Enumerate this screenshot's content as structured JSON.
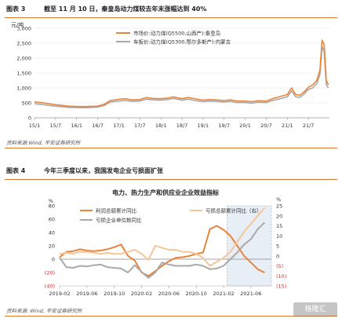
{
  "figure3": {
    "num": "图表 3",
    "title": "截至 11 月 10 日，秦皇岛动力煤较去年末涨幅达到 40%",
    "source": "资料来源:Wind, 平安证券研究所"
  },
  "figure4": {
    "num": "图表 4",
    "title": "今年三季度以来，我国发电企业亏损面扩张",
    "source": "资料来源: Wind, 平安证券研究所"
  },
  "watermark": "格隆汇",
  "chart_data": [
    {
      "type": "line",
      "title": "",
      "ylabel": "元/吨",
      "ylim": [
        0,
        3000
      ],
      "yticks": [
        0,
        500,
        1000,
        1500,
        2000,
        2500,
        3000
      ],
      "yticklabels": [
        "0",
        "500",
        "1,000",
        "1,500",
        "2,000",
        "2,500",
        "3,000"
      ],
      "xticklabels": [
        "15/1",
        "15/7",
        "16/1",
        "16/7",
        "17/1",
        "17/7",
        "18/1",
        "18/7",
        "19/1",
        "19/7",
        "20/1",
        "20/7",
        "21/1",
        "21/7"
      ],
      "xrange": [
        0,
        14
      ],
      "grid": "horizontal",
      "legend": "top-right",
      "colors": [
        "#e8843c",
        "#a9a9a9"
      ],
      "series": [
        {
          "name": "市场价:动力煤(Q5500,山西产):秦皇岛",
          "x": [
            0,
            0.3,
            0.6,
            1,
            1.3,
            1.6,
            2,
            2.3,
            2.6,
            3,
            3.3,
            3.6,
            4,
            4.3,
            4.6,
            5,
            5.3,
            5.6,
            6,
            6.3,
            6.6,
            7,
            7.3,
            7.6,
            8,
            8.3,
            8.6,
            9,
            9.3,
            9.6,
            10,
            10.3,
            10.6,
            11,
            11.3,
            11.6,
            12,
            12.2,
            12.4,
            12.6,
            12.8,
            13,
            13.2,
            13.4,
            13.55,
            13.65,
            13.75,
            13.85,
            13.95
          ],
          "values": [
            530,
            510,
            480,
            440,
            415,
            390,
            380,
            375,
            380,
            390,
            450,
            580,
            620,
            640,
            600,
            610,
            680,
            650,
            640,
            660,
            700,
            640,
            680,
            640,
            590,
            610,
            600,
            580,
            600,
            560,
            560,
            540,
            570,
            560,
            640,
            700,
            780,
            1000,
            780,
            760,
            870,
            1020,
            1100,
            1250,
            1600,
            2600,
            2450,
            1250,
            1100
          ]
        },
        {
          "name": "车板价:动力煤(Q5300,鄂尔多斯产):内蒙古",
          "x": [
            0,
            0.3,
            0.6,
            1,
            1.3,
            1.6,
            2,
            2.3,
            2.6,
            3,
            3.3,
            3.6,
            4,
            4.3,
            4.6,
            5,
            5.3,
            5.6,
            6,
            6.3,
            6.6,
            7,
            7.3,
            7.6,
            8,
            8.3,
            8.6,
            9,
            9.3,
            9.6,
            10,
            10.3,
            10.6,
            11,
            11.3,
            11.6,
            12,
            12.2,
            12.4,
            12.6,
            12.8,
            13,
            13.2,
            13.4,
            13.55,
            13.65,
            13.75,
            13.85,
            13.95
          ],
          "values": [
            470,
            450,
            420,
            390,
            370,
            350,
            340,
            340,
            345,
            355,
            410,
            530,
            560,
            580,
            550,
            560,
            620,
            600,
            590,
            610,
            650,
            590,
            620,
            580,
            540,
            560,
            550,
            530,
            550,
            510,
            510,
            490,
            520,
            510,
            580,
            630,
            700,
            900,
            700,
            690,
            800,
            950,
            1000,
            1150,
            1450,
            2400,
            2200,
            1100,
            1000
          ]
        }
      ]
    },
    {
      "type": "line",
      "title": "电力、热力生产和供应业企业效益指标",
      "ylabel": "%",
      "y2label": "%",
      "ylim": [
        -40,
        80
      ],
      "yticklabels": [
        "(40)",
        "(20)",
        "0",
        "20",
        "40",
        "60",
        "80"
      ],
      "y2lim": [
        -15,
        25
      ],
      "y2ticklabels": [
        "(15)",
        "(10)",
        "(5)",
        "0",
        "5",
        "10",
        "15",
        "20",
        "25"
      ],
      "xticklabels": [
        "2019-02",
        "2019-06",
        "2019-10",
        "2020-02",
        "2020-06",
        "2020-10",
        "2021-02",
        "2021-06"
      ],
      "xrange": [
        0,
        31
      ],
      "shaded_region": [
        24.5,
        31
      ],
      "legend": "top",
      "colors": [
        "#e8843c",
        "#f5c59a",
        "#a9a9a9"
      ],
      "series": [
        {
          "name": "利润总额累计同比",
          "axis": "left",
          "x": [
            0,
            1,
            2,
            3,
            4,
            5,
            6,
            7,
            8,
            9,
            10,
            11,
            12,
            13,
            14,
            15,
            16,
            17,
            18,
            19,
            20,
            21,
            22,
            23,
            24,
            25,
            26,
            27,
            28,
            29,
            30
          ],
          "values": [
            3,
            11,
            12,
            15,
            13,
            12,
            13,
            15,
            18,
            22,
            5,
            -2,
            -20,
            -25,
            -18,
            -10,
            -3,
            2,
            3,
            5,
            8,
            10,
            45,
            50,
            44,
            35,
            20,
            5,
            -5,
            -15,
            -20
          ]
        },
        {
          "name": "亏损总额累计同比（右）",
          "axis": "right",
          "x": [
            0,
            1,
            2,
            3,
            4,
            5,
            6,
            7,
            8,
            9,
            10,
            11,
            12,
            13,
            14,
            15,
            16,
            17,
            18,
            19,
            20,
            21,
            22,
            23,
            24,
            25,
            26,
            27,
            28,
            29,
            30
          ],
          "values": [
            1,
            1.5,
            1,
            2,
            2,
            1.5,
            1,
            1.5,
            1,
            1,
            2,
            3,
            1,
            -2,
            5,
            4,
            3,
            3,
            2,
            2,
            1,
            -1,
            -5,
            -3,
            -1,
            2,
            7,
            12,
            16,
            20,
            24
          ]
        },
        {
          "name": "亏损企业单位数同比",
          "axis": "left",
          "x": [
            0,
            1,
            2,
            3,
            4,
            5,
            6,
            7,
            8,
            9,
            10,
            11,
            12,
            13,
            14,
            15,
            16,
            17,
            18,
            19,
            20,
            21,
            22,
            23,
            24,
            25,
            26,
            27,
            28,
            29,
            30
          ],
          "values": [
            2,
            -12,
            -13,
            -10,
            -11,
            -9,
            -8,
            -12,
            -13,
            -14,
            -20,
            -9,
            -19,
            -28,
            -20,
            -5,
            -8,
            -10,
            -10,
            -10,
            -8,
            -10,
            -15,
            -14,
            -10,
            0,
            10,
            22,
            30,
            45,
            55
          ]
        }
      ]
    }
  ]
}
